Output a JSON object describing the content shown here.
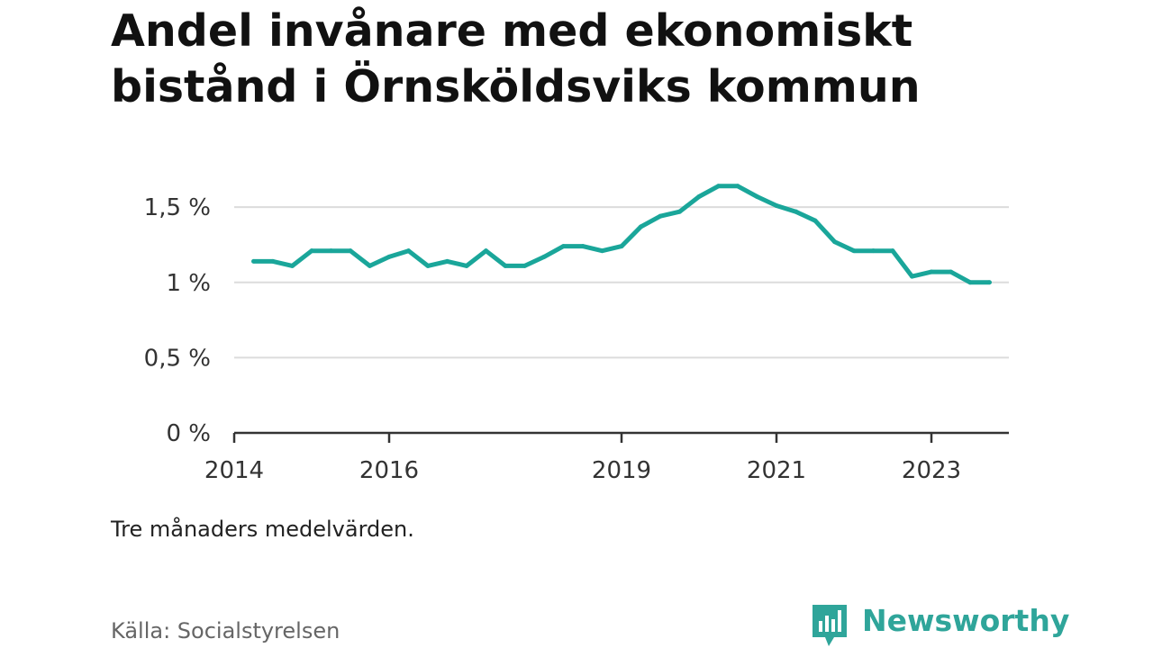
{
  "header": {
    "title_line1": "Andel invånare med ekonomiskt",
    "title_line2": "bistånd i Örnsköldsviks kommun"
  },
  "footer": {
    "note": "Tre månaders medelvärden.",
    "source": "Källa: Socialstyrelsen",
    "brand": "Newsworthy",
    "brand_icon": "newsworthy-logo-icon"
  },
  "colors": {
    "line": "#1aa69a",
    "grid": "#dcdcdc",
    "axis": "#333333",
    "brand": "#2fa59a"
  },
  "chart_data": {
    "type": "line",
    "title": "Andel invånare med ekonomiskt bistånd i Örnsköldsviks kommun",
    "xlabel": "",
    "ylabel": "",
    "ylim": [
      0,
      1.8
    ],
    "xlim": [
      "2014-01-01",
      "2024-01-01"
    ],
    "grid": true,
    "y_ticks": [
      0,
      0.5,
      1,
      1.5
    ],
    "y_tick_labels": [
      "0 %",
      "0,5 %",
      "1 %",
      "1,5 %"
    ],
    "x_ticks": [
      "2014-01-01",
      "2016-01-01",
      "2019-01-01",
      "2021-01-01",
      "2023-01-01"
    ],
    "x_tick_labels": [
      "2014",
      "2016",
      "2019",
      "2021",
      "2023"
    ],
    "series": [
      {
        "x": [
          "2014-04",
          "2014-07",
          "2014-10",
          "2015-01",
          "2015-04",
          "2015-07",
          "2015-10",
          "2016-01",
          "2016-04",
          "2016-07",
          "2016-10",
          "2017-01",
          "2017-04",
          "2017-07",
          "2017-10",
          "2018-01",
          "2018-04",
          "2018-07",
          "2018-10",
          "2019-01",
          "2019-04",
          "2019-07",
          "2019-10",
          "2020-01",
          "2020-04",
          "2020-07",
          "2020-10",
          "2021-01",
          "2021-04",
          "2021-07",
          "2021-10",
          "2022-01",
          "2022-04",
          "2022-07",
          "2022-10",
          "2023-01",
          "2023-04",
          "2023-07",
          "2023-10"
        ],
        "values": [
          1.14,
          1.14,
          1.11,
          1.21,
          1.21,
          1.21,
          1.11,
          1.17,
          1.21,
          1.11,
          1.14,
          1.11,
          1.21,
          1.11,
          1.11,
          1.17,
          1.24,
          1.24,
          1.21,
          1.24,
          1.37,
          1.44,
          1.47,
          1.57,
          1.64,
          1.64,
          1.57,
          1.51,
          1.47,
          1.41,
          1.27,
          1.21,
          1.21,
          1.21,
          1.04,
          1.07,
          1.07,
          1.0,
          1.0
        ]
      }
    ]
  }
}
